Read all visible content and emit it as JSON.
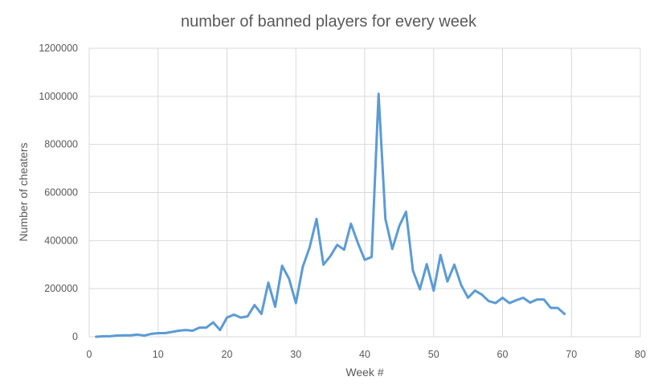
{
  "chart_data": {
    "type": "line",
    "title": "number of banned players for every week",
    "xlabel": "Week #",
    "ylabel": "Number of cheaters",
    "xlim": [
      0,
      80
    ],
    "ylim": [
      0,
      1200000
    ],
    "xticks": [
      0,
      10,
      20,
      30,
      40,
      50,
      60,
      70,
      80
    ],
    "yticks": [
      0,
      200000,
      400000,
      600000,
      800000,
      1000000,
      1200000
    ],
    "xtick_labels": [
      "0",
      "10",
      "20",
      "30",
      "40",
      "50",
      "60",
      "70",
      "80"
    ],
    "ytick_labels": [
      "0",
      "200000",
      "400000",
      "600000",
      "800000",
      "1000000",
      "1200000"
    ],
    "grid": true,
    "legend": "none",
    "colors": {
      "series": "#5b9bd5",
      "grid": "#d9d9d9",
      "text": "#595959"
    },
    "series": [
      {
        "x": [
          1,
          2,
          3,
          4,
          5,
          6,
          7,
          8,
          9,
          10,
          11,
          12,
          13,
          14,
          15,
          16,
          17,
          18,
          19,
          20,
          21,
          22,
          23,
          24,
          25,
          26,
          27,
          28,
          29,
          30,
          31,
          32,
          33,
          34,
          35,
          36,
          37,
          38,
          39,
          40,
          41,
          42,
          43,
          44,
          45,
          46,
          47,
          48,
          49,
          50,
          51,
          52,
          53,
          54,
          55,
          56,
          57,
          58,
          59,
          60,
          61,
          62,
          63,
          64,
          65,
          66,
          67,
          68,
          69
        ],
        "values": [
          0,
          2000,
          2000,
          5000,
          6000,
          6000,
          9000,
          5000,
          12000,
          15000,
          15000,
          20000,
          25000,
          28000,
          25000,
          38000,
          38000,
          60000,
          28000,
          80000,
          92000,
          80000,
          85000,
          132000,
          95000,
          225000,
          125000,
          295000,
          242000,
          140000,
          290000,
          372000,
          490000,
          300000,
          335000,
          382000,
          362000,
          470000,
          390000,
          320000,
          332000,
          1010000,
          490000,
          365000,
          460000,
          520000,
          275000,
          198000,
          302000,
          192000,
          340000,
          230000,
          300000,
          215000,
          162000,
          192000,
          175000,
          148000,
          140000,
          162000,
          140000,
          152000,
          162000,
          142000,
          155000,
          155000,
          120000,
          120000,
          95000
        ]
      }
    ]
  }
}
